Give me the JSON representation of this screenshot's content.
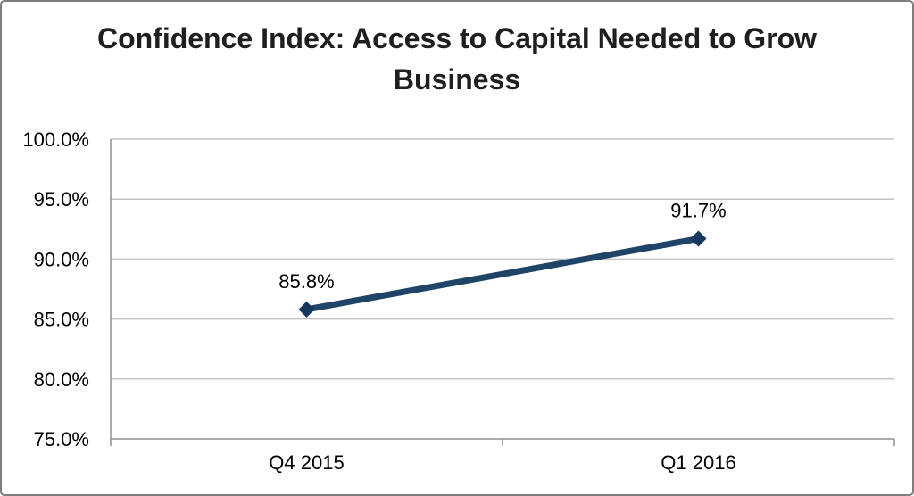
{
  "chart_data": {
    "type": "line",
    "title": "Confidence Index: Access to Capital Needed to Grow Business",
    "categories": [
      "Q4 2015",
      "Q1 2016"
    ],
    "series": [
      {
        "name": "Confidence Index",
        "values": [
          85.8,
          91.7
        ]
      }
    ],
    "data_labels": [
      "85.8%",
      "91.7%"
    ],
    "xlabel": "",
    "ylabel": "",
    "ylim": [
      75,
      100
    ],
    "ytick_step": 5,
    "ytick_labels": [
      "75.0%",
      "80.0%",
      "85.0%",
      "90.0%",
      "95.0%",
      "100.0%"
    ],
    "grid": true,
    "legend": "none",
    "colors": {
      "line": "#1f4467",
      "marker": "#17375d",
      "gridline": "#c3c3c3",
      "axis": "#8f8f8f",
      "label_text": "#000000",
      "title_text": "#1f1f1f",
      "border": "#7f7f7f"
    }
  }
}
